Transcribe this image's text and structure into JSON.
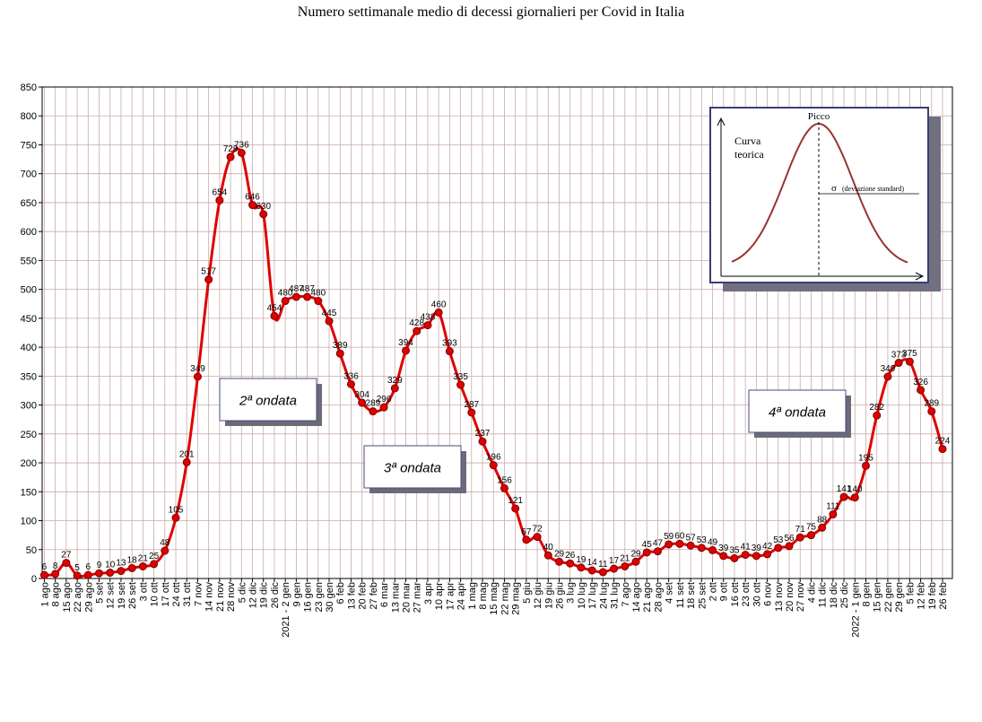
{
  "chart_data": {
    "type": "line",
    "title": "Numero settimanale medio di decessi giornalieri per Covid in Italia",
    "xlabel": "",
    "ylabel": "",
    "ylim": [
      0,
      850
    ],
    "yticks": [
      0,
      50,
      100,
      150,
      200,
      250,
      300,
      350,
      400,
      450,
      500,
      550,
      600,
      650,
      700,
      750,
      800,
      850
    ],
    "grid": true,
    "line_color": "#e00000",
    "marker_color": "#e00000",
    "point_labels": [
      "6",
      "8",
      "27",
      "5",
      "6",
      "9",
      "10",
      "13",
      "18",
      "21",
      "25",
      "48",
      "105",
      "201",
      "349",
      "517",
      "654",
      "729",
      "736",
      "646",
      "630",
      "454",
      "480",
      "487",
      "487",
      "480",
      "445",
      "389",
      "336",
      "304",
      "289",
      "296",
      "329",
      "394",
      "428",
      "438",
      "460",
      "393",
      "335",
      "287",
      "237",
      "196",
      "156",
      "121",
      "67",
      "72",
      "40",
      "29",
      "26",
      "19",
      "14",
      "11",
      "17",
      "21",
      "29",
      "45",
      "47",
      "59",
      "60",
      "57",
      "53",
      "49",
      "39",
      "35",
      "41",
      "39",
      "42",
      "53",
      "56",
      "71",
      "75",
      "88",
      "111",
      "141",
      "140",
      "195",
      "282",
      "349",
      "373",
      "375",
      "326",
      "289",
      "224"
    ],
    "values": [
      6,
      8,
      27,
      5,
      6,
      9,
      10,
      13,
      18,
      21,
      25,
      48,
      105,
      201,
      349,
      517,
      654,
      729,
      736,
      646,
      630,
      454,
      480,
      487,
      487,
      480,
      445,
      389,
      336,
      304,
      289,
      296,
      329,
      394,
      428,
      438,
      460,
      393,
      335,
      287,
      237,
      196,
      156,
      121,
      67,
      72,
      40,
      29,
      26,
      19,
      14,
      11,
      17,
      21,
      29,
      45,
      47,
      59,
      60,
      57,
      53,
      49,
      39,
      35,
      41,
      39,
      42,
      53,
      56,
      71,
      75,
      88,
      111,
      141,
      140,
      195,
      282,
      349,
      373,
      375,
      326,
      289,
      224
    ],
    "x_labels": [
      "1 ago",
      "8 ago",
      "15 ago",
      "22 ago",
      "29 ago",
      "5 set",
      "12 set",
      "19 set",
      "26 set",
      "3 ott",
      "10 ott",
      "17 ott",
      "24 ott",
      "31 ott",
      "7 nov",
      "14 nov",
      "21 nov",
      "28 nov",
      "5 dic",
      "12 dic",
      "19 dic",
      "26 dic",
      "2021 - 2 gen",
      "9 gen",
      "16 gen",
      "23 gen",
      "30 gen",
      "6 feb",
      "13 feb",
      "20 feb",
      "27 feb",
      "6 mar",
      "13 mar",
      "20 mar",
      "27 mar",
      "3 apr",
      "10 apr",
      "17 apr",
      "24 apr",
      "1 mag",
      "8 mag",
      "15 mag",
      "22 mag",
      "29 mag",
      "5 giu",
      "12 giu",
      "19 giu",
      "26 giu",
      "3 lug",
      "10 lug",
      "17 lug",
      "24 lug",
      "31 lug",
      "7 ago",
      "14 ago",
      "21 ago",
      "28 ago",
      "4 set",
      "11 set",
      "18 set",
      "25 set",
      "2 ott",
      "9 ott",
      "16 ott",
      "23 ott",
      "30 ott",
      "6 nov",
      "13 nov",
      "20 nov",
      "27 nov",
      "4 dic",
      "11 dic",
      "18 dic",
      "25 dic",
      "2022 - 1 gen",
      "8 gen",
      "15 gen",
      "22 gen",
      "29 gen",
      "5 feb",
      "12 feb",
      "19 feb",
      "26 feb"
    ],
    "annotations": [
      {
        "text": "2ª ondata"
      },
      {
        "text": "3ª ondata"
      },
      {
        "text": "4ª ondata"
      }
    ],
    "inset": {
      "peak_label": "Picco",
      "curve_label_line1": "Curva",
      "curve_label_line2": "teorica",
      "sigma_label": "σ",
      "sigma_desc": "(deviazione standard)"
    }
  }
}
